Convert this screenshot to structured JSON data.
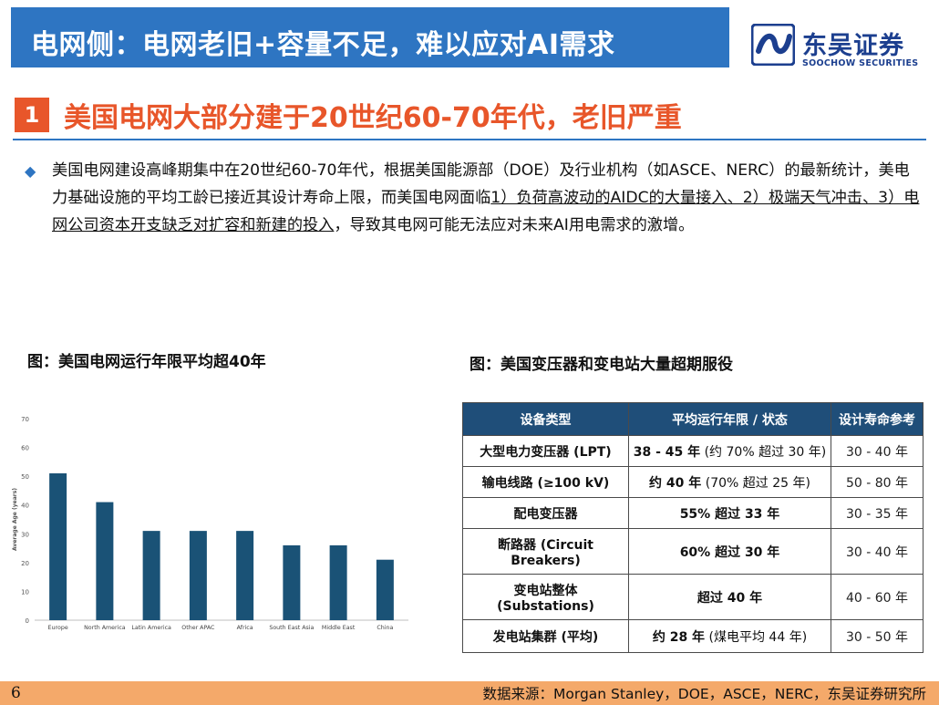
{
  "header": {
    "title": "电网侧：电网老旧+容量不足，难以应对AI需求"
  },
  "logo": {
    "name_cn": "东吴证券",
    "name_en": "SOOCHOW SECURITIES",
    "icon": "soochow-logo-icon",
    "color": "#1c3f8f"
  },
  "section": {
    "number": "1",
    "title": "美国电网大部分建于20世纪60-70年代，老旧严重"
  },
  "paragraph": {
    "part1": "美国电网建设高峰期集中在20世纪60-70年代，根据美国能源部（DOE）及行业机构（如ASCE、NERC）的最新统计，美电力基础设施的平均工龄已接近其设计寿命上限，而美国电网面临",
    "underlined": "1）负荷高波动的AIDC的大量接入、2）极端天气冲击、3）电网公司资本开支缺乏对扩容和新建的投入",
    "part2": "，导致其电网可能无法应对未来AI用电需求的激增。"
  },
  "left_caption": "图：美国电网运行年限平均超40年",
  "right_caption": "图：美国变压器和变电站大量超期服役",
  "chart_data": {
    "type": "bar",
    "categories": [
      "Europe",
      "North America",
      "Latin America",
      "Other APAC",
      "Africa",
      "South East Asia",
      "Middle East",
      "China"
    ],
    "values": [
      51,
      41,
      31,
      31,
      31,
      26,
      26,
      21
    ],
    "ylabel": "Average Age (years)",
    "ylim": [
      0,
      70
    ],
    "yticks": [
      0,
      10,
      20,
      30,
      40,
      50,
      60,
      70
    ],
    "bar_color": "#1a5276",
    "grid": false
  },
  "table": {
    "headers": [
      "设备类型",
      "平均运行年限 / 状态",
      "设计寿命参考"
    ],
    "rows": [
      {
        "type": "大型电力变压器 (LPT)",
        "age_bold": "38 - 45 年",
        "age_rest": " (约 70% 超过 30 年)",
        "life": "30 - 40 年"
      },
      {
        "type": "输电线路 (≥100 kV)",
        "age_bold": "约 40 年",
        "age_rest": " (70% 超过 25 年)",
        "life": "50 - 80 年"
      },
      {
        "type": "配电变压器",
        "age_bold": "55% 超过 33 年",
        "age_rest": "",
        "life": "30 - 35 年"
      },
      {
        "type": "断路器 (Circuit Breakers)",
        "age_bold": "60% 超过 30 年",
        "age_rest": "",
        "life": "30 - 40 年"
      },
      {
        "type": "变电站整体 (Substations)",
        "age_bold": "超过 40 年",
        "age_rest": "",
        "life": "40 - 60 年"
      },
      {
        "type": "发电站集群 (平均)",
        "age_bold": "约 28 年",
        "age_rest": " (煤电平均 44 年)",
        "life": "30 - 50 年"
      }
    ]
  },
  "footer": {
    "page": "6",
    "source": "数据来源：Morgan Stanley，DOE，ASCE，NERC，东吴证券研究所"
  }
}
